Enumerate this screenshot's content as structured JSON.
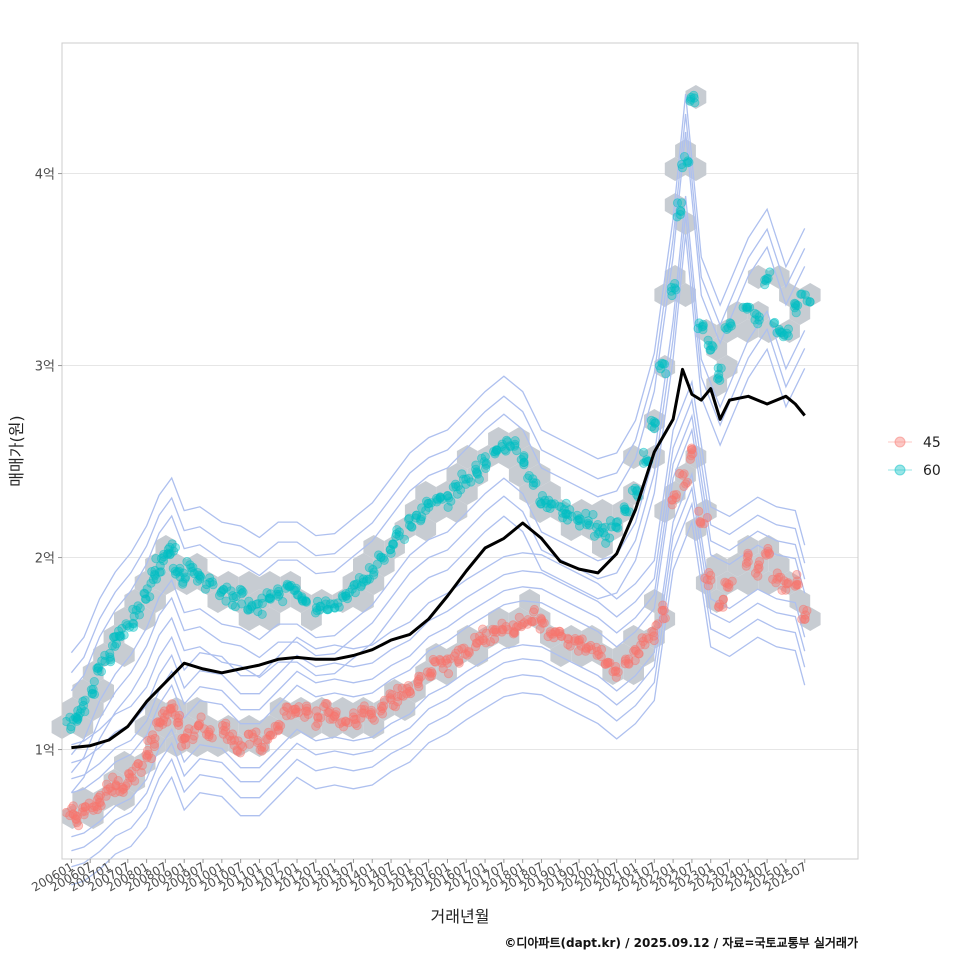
{
  "chart_data": {
    "type": "scatter",
    "xlabel": "거래년월",
    "ylabel": "매매가(원)",
    "caption": "©디아파트(dapt.kr) / 2025.09.12 / 자료=국토교통부 실거래가",
    "xlim": [
      "2005-10",
      "2026-12"
    ],
    "ylim": [
      0.43,
      4.68
    ],
    "y_unit": "억",
    "y_ticks": [
      {
        "value": 1,
        "label": "1억"
      },
      {
        "value": 2,
        "label": "2억"
      },
      {
        "value": 3,
        "label": "3억"
      },
      {
        "value": 4,
        "label": "4억"
      }
    ],
    "x_ticks": [
      "200601",
      "200607",
      "200701",
      "200707",
      "200801",
      "200807",
      "200901",
      "200907",
      "201001",
      "201007",
      "201101",
      "201107",
      "201201",
      "201207",
      "201301",
      "201307",
      "201401",
      "201407",
      "201501",
      "201507",
      "201601",
      "201607",
      "201701",
      "201707",
      "201801",
      "201807",
      "201901",
      "201907",
      "202001",
      "202007",
      "202101",
      "202107",
      "202201",
      "202207",
      "202301",
      "202307",
      "202401",
      "202407",
      "202501",
      "202507"
    ],
    "grid": true,
    "legend_position": "right",
    "series": [
      {
        "name": "45",
        "color": "#F8766D",
        "points": [
          [
            "2006-01",
            0.66
          ],
          [
            "2006-03",
            0.63
          ],
          [
            "2006-05",
            0.68
          ],
          [
            "2006-08",
            0.7
          ],
          [
            "2006-10",
            0.74
          ],
          [
            "2007-01",
            0.78
          ],
          [
            "2007-03",
            0.82
          ],
          [
            "2007-05",
            0.8
          ],
          [
            "2007-08",
            0.86
          ],
          [
            "2007-10",
            0.9
          ],
          [
            "2008-01",
            0.96
          ],
          [
            "2008-03",
            1.04
          ],
          [
            "2008-05",
            1.12
          ],
          [
            "2008-07",
            1.18
          ],
          [
            "2008-09",
            1.22
          ],
          [
            "2008-11",
            1.14
          ],
          [
            "2009-01",
            1.05
          ],
          [
            "2009-03",
            1.1
          ],
          [
            "2009-06",
            1.14
          ],
          [
            "2009-09",
            1.08
          ],
          [
            "2010-01",
            1.12
          ],
          [
            "2010-04",
            1.05
          ],
          [
            "2010-07",
            1.02
          ],
          [
            "2010-10",
            1.06
          ],
          [
            "2011-01",
            1.02
          ],
          [
            "2011-04",
            1.08
          ],
          [
            "2011-07",
            1.12
          ],
          [
            "2011-10",
            1.18
          ],
          [
            "2012-01",
            1.22
          ],
          [
            "2012-04",
            1.2
          ],
          [
            "2012-07",
            1.16
          ],
          [
            "2012-10",
            1.22
          ],
          [
            "2013-01",
            1.18
          ],
          [
            "2013-04",
            1.15
          ],
          [
            "2013-07",
            1.16
          ],
          [
            "2013-10",
            1.2
          ],
          [
            "2014-01",
            1.18
          ],
          [
            "2014-04",
            1.22
          ],
          [
            "2014-07",
            1.25
          ],
          [
            "2014-10",
            1.28
          ],
          [
            "2015-01",
            1.3
          ],
          [
            "2015-04",
            1.36
          ],
          [
            "2015-07",
            1.4
          ],
          [
            "2015-10",
            1.44
          ],
          [
            "2016-01",
            1.45
          ],
          [
            "2016-04",
            1.48
          ],
          [
            "2016-07",
            1.52
          ],
          [
            "2016-10",
            1.56
          ],
          [
            "2017-01",
            1.58
          ],
          [
            "2017-04",
            1.62
          ],
          [
            "2017-07",
            1.64
          ],
          [
            "2017-10",
            1.62
          ],
          [
            "2018-01",
            1.66
          ],
          [
            "2018-04",
            1.68
          ],
          [
            "2018-07",
            1.65
          ],
          [
            "2018-10",
            1.62
          ],
          [
            "2019-01",
            1.6
          ],
          [
            "2019-04",
            1.58
          ],
          [
            "2019-07",
            1.55
          ],
          [
            "2019-10",
            1.52
          ],
          [
            "2020-01",
            1.5
          ],
          [
            "2020-04",
            1.45
          ],
          [
            "2020-07",
            1.42
          ],
          [
            "2020-10",
            1.45
          ],
          [
            "2021-01",
            1.5
          ],
          [
            "2021-04",
            1.56
          ],
          [
            "2021-07",
            1.62
          ],
          [
            "2021-10",
            1.7
          ],
          [
            "2022-01",
            2.3
          ],
          [
            "2022-04",
            2.4
          ],
          [
            "2022-07",
            2.55
          ],
          [
            "2022-10",
            2.2
          ],
          [
            "2023-01",
            1.9
          ],
          [
            "2023-04",
            1.75
          ],
          [
            "2023-07",
            1.85
          ],
          [
            "2024-01",
            1.98
          ],
          [
            "2024-04",
            1.95
          ],
          [
            "2024-07",
            2.05
          ],
          [
            "2024-10",
            1.9
          ],
          [
            "2025-01",
            1.85
          ],
          [
            "2025-04",
            1.88
          ],
          [
            "2025-07",
            1.7
          ]
        ]
      },
      {
        "name": "60",
        "color": "#00BFC4",
        "points": [
          [
            "2006-01",
            1.14
          ],
          [
            "2006-03",
            1.18
          ],
          [
            "2006-05",
            1.22
          ],
          [
            "2006-08",
            1.3
          ],
          [
            "2006-10",
            1.42
          ],
          [
            "2007-01",
            1.48
          ],
          [
            "2007-03",
            1.56
          ],
          [
            "2007-05",
            1.6
          ],
          [
            "2007-08",
            1.66
          ],
          [
            "2007-10",
            1.72
          ],
          [
            "2008-01",
            1.8
          ],
          [
            "2008-03",
            1.9
          ],
          [
            "2008-05",
            1.96
          ],
          [
            "2008-07",
            2.02
          ],
          [
            "2008-09",
            2.05
          ],
          [
            "2008-11",
            1.92
          ],
          [
            "2009-01",
            1.88
          ],
          [
            "2009-03",
            1.96
          ],
          [
            "2009-06",
            1.9
          ],
          [
            "2009-09",
            1.86
          ],
          [
            "2010-01",
            1.82
          ],
          [
            "2010-04",
            1.78
          ],
          [
            "2010-07",
            1.8
          ],
          [
            "2010-10",
            1.76
          ],
          [
            "2011-01",
            1.74
          ],
          [
            "2011-04",
            1.78
          ],
          [
            "2011-07",
            1.82
          ],
          [
            "2011-10",
            1.86
          ],
          [
            "2012-01",
            1.82
          ],
          [
            "2012-04",
            1.78
          ],
          [
            "2012-07",
            1.75
          ],
          [
            "2012-10",
            1.74
          ],
          [
            "2013-01",
            1.76
          ],
          [
            "2013-04",
            1.8
          ],
          [
            "2013-07",
            1.84
          ],
          [
            "2013-10",
            1.88
          ],
          [
            "2014-01",
            1.92
          ],
          [
            "2014-04",
            1.98
          ],
          [
            "2014-07",
            2.05
          ],
          [
            "2014-10",
            2.12
          ],
          [
            "2015-01",
            2.18
          ],
          [
            "2015-04",
            2.22
          ],
          [
            "2015-07",
            2.26
          ],
          [
            "2015-10",
            2.3
          ],
          [
            "2016-01",
            2.3
          ],
          [
            "2016-04",
            2.35
          ],
          [
            "2016-07",
            2.4
          ],
          [
            "2016-10",
            2.45
          ],
          [
            "2017-01",
            2.5
          ],
          [
            "2017-04",
            2.55
          ],
          [
            "2017-07",
            2.58
          ],
          [
            "2017-10",
            2.6
          ],
          [
            "2018-01",
            2.5
          ],
          [
            "2018-04",
            2.4
          ],
          [
            "2018-07",
            2.3
          ],
          [
            "2018-10",
            2.28
          ],
          [
            "2019-01",
            2.25
          ],
          [
            "2019-04",
            2.22
          ],
          [
            "2019-07",
            2.2
          ],
          [
            "2019-10",
            2.18
          ],
          [
            "2020-01",
            2.15
          ],
          [
            "2020-04",
            2.12
          ],
          [
            "2020-07",
            2.18
          ],
          [
            "2020-10",
            2.25
          ],
          [
            "2021-01",
            2.35
          ],
          [
            "2021-04",
            2.5
          ],
          [
            "2021-07",
            2.7
          ],
          [
            "2021-10",
            3.0
          ],
          [
            "2022-01",
            3.4
          ],
          [
            "2022-03",
            3.8
          ],
          [
            "2022-05",
            4.05
          ],
          [
            "2022-07",
            4.4
          ],
          [
            "2022-10",
            3.2
          ],
          [
            "2023-01",
            3.1
          ],
          [
            "2023-04",
            2.95
          ],
          [
            "2023-07",
            3.2
          ],
          [
            "2024-01",
            3.3
          ],
          [
            "2024-04",
            3.25
          ],
          [
            "2024-07",
            3.45
          ],
          [
            "2024-10",
            3.2
          ],
          [
            "2025-01",
            3.15
          ],
          [
            "2025-04",
            3.3
          ],
          [
            "2025-07",
            3.35
          ]
        ]
      }
    ],
    "trend_line": {
      "color": "#000000",
      "points": [
        [
          "2006-01",
          1.01
        ],
        [
          "2006-07",
          1.02
        ],
        [
          "2007-01",
          1.05
        ],
        [
          "2007-07",
          1.12
        ],
        [
          "2008-01",
          1.25
        ],
        [
          "2008-07",
          1.35
        ],
        [
          "2009-01",
          1.45
        ],
        [
          "2009-07",
          1.42
        ],
        [
          "2010-01",
          1.4
        ],
        [
          "2010-07",
          1.42
        ],
        [
          "2011-01",
          1.44
        ],
        [
          "2011-07",
          1.47
        ],
        [
          "2012-01",
          1.48
        ],
        [
          "2012-07",
          1.47
        ],
        [
          "2013-01",
          1.47
        ],
        [
          "2013-07",
          1.49
        ],
        [
          "2014-01",
          1.52
        ],
        [
          "2014-07",
          1.57
        ],
        [
          "2015-01",
          1.6
        ],
        [
          "2015-07",
          1.68
        ],
        [
          "2016-01",
          1.8
        ],
        [
          "2016-07",
          1.93
        ],
        [
          "2017-01",
          2.05
        ],
        [
          "2017-07",
          2.1
        ],
        [
          "2018-01",
          2.18
        ],
        [
          "2018-07",
          2.1
        ],
        [
          "2019-01",
          1.98
        ],
        [
          "2019-07",
          1.94
        ],
        [
          "2020-01",
          1.92
        ],
        [
          "2020-07",
          2.02
        ],
        [
          "2021-01",
          2.25
        ],
        [
          "2021-07",
          2.55
        ],
        [
          "2022-01",
          2.72
        ],
        [
          "2022-04",
          2.98
        ],
        [
          "2022-07",
          2.85
        ],
        [
          "2022-10",
          2.82
        ],
        [
          "2023-01",
          2.88
        ],
        [
          "2023-04",
          2.72
        ],
        [
          "2023-07",
          2.82
        ],
        [
          "2024-01",
          2.84
        ],
        [
          "2024-07",
          2.8
        ],
        [
          "2025-01",
          2.84
        ],
        [
          "2025-04",
          2.8
        ],
        [
          "2025-07",
          2.74
        ]
      ]
    }
  }
}
